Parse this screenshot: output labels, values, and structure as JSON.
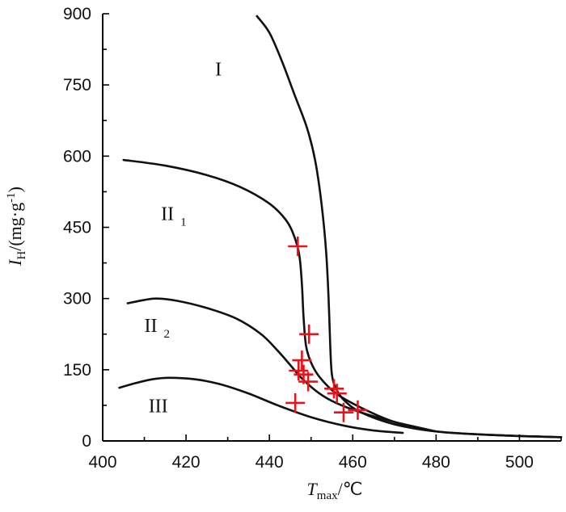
{
  "chart_data": {
    "type": "line",
    "title": "",
    "xlabel": {
      "main": "T",
      "sub": "max",
      "unit": "/℃"
    },
    "ylabel": {
      "main": "I",
      "sub": "H",
      "unit": "/(mg·g",
      "sup": "-1",
      "close": ")"
    },
    "xlim": [
      400,
      510
    ],
    "ylim": [
      0,
      900
    ],
    "x_ticks": [
      "400",
      "420",
      "440",
      "460",
      "480",
      "500"
    ],
    "y_ticks": [
      "0",
      "150",
      "300",
      "450",
      "600",
      "750",
      "900"
    ],
    "grid": false,
    "legend": "none",
    "colors": {
      "axis": "#000000",
      "curve": "#111111",
      "marker": "#e8121a"
    },
    "region_labels": [
      {
        "main": "I",
        "sub": "",
        "x": 427,
        "y": 770
      },
      {
        "main": "II",
        "sub": "1",
        "x": 414,
        "y": 465
      },
      {
        "main": "II",
        "sub": "2",
        "x": 410,
        "y": 230
      },
      {
        "main": "III",
        "sub": "",
        "x": 411,
        "y": 60
      }
    ],
    "series": [
      {
        "points": [
          [
            437,
            895
          ],
          [
            440,
            860
          ],
          [
            443,
            800
          ],
          [
            446,
            730
          ],
          [
            449,
            660
          ],
          [
            451,
            590
          ],
          [
            452.5,
            500
          ],
          [
            453.6,
            400
          ],
          [
            454.2,
            300
          ],
          [
            454.6,
            200
          ],
          [
            455,
            140
          ],
          [
            456,
            110
          ],
          [
            458,
            85
          ],
          [
            462,
            60
          ],
          [
            470,
            35
          ],
          [
            480,
            20
          ],
          [
            495,
            12
          ],
          [
            510,
            8
          ]
        ]
      },
      {
        "points": [
          [
            405,
            592
          ],
          [
            415,
            580
          ],
          [
            425,
            560
          ],
          [
            433,
            535
          ],
          [
            440,
            500
          ],
          [
            444,
            465
          ],
          [
            446,
            430
          ],
          [
            447.2,
            390
          ],
          [
            447.8,
            330
          ],
          [
            448.2,
            260
          ],
          [
            448.8,
            200
          ],
          [
            450,
            165
          ],
          [
            452,
            135
          ],
          [
            456,
            100
          ],
          [
            462,
            70
          ],
          [
            470,
            40
          ],
          [
            480,
            20
          ],
          [
            495,
            12
          ],
          [
            510,
            8
          ]
        ]
      },
      {
        "points": [
          [
            406,
            290
          ],
          [
            410,
            297
          ],
          [
            413,
            300
          ],
          [
            418,
            295
          ],
          [
            425,
            280
          ],
          [
            432,
            258
          ],
          [
            438,
            225
          ],
          [
            442,
            190
          ],
          [
            445,
            160
          ],
          [
            448,
            130
          ],
          [
            452,
            100
          ],
          [
            456,
            80
          ],
          [
            462,
            60
          ],
          [
            470,
            40
          ],
          [
            480,
            20
          ]
        ]
      },
      {
        "points": [
          [
            404,
            112
          ],
          [
            408,
            122
          ],
          [
            412,
            130
          ],
          [
            416,
            133
          ],
          [
            422,
            130
          ],
          [
            428,
            120
          ],
          [
            435,
            100
          ],
          [
            442,
            75
          ],
          [
            450,
            50
          ],
          [
            458,
            32
          ],
          [
            465,
            22
          ],
          [
            472,
            17
          ]
        ]
      }
    ],
    "markers": [
      [
        446.8,
        410
      ],
      [
        449.5,
        225
      ],
      [
        447.8,
        170
      ],
      [
        447,
        148
      ],
      [
        448.2,
        140
      ],
      [
        449.3,
        125
      ],
      [
        446.2,
        80
      ],
      [
        455.5,
        110
      ],
      [
        456.2,
        100
      ],
      [
        457.8,
        60
      ],
      [
        461.2,
        65
      ]
    ]
  }
}
